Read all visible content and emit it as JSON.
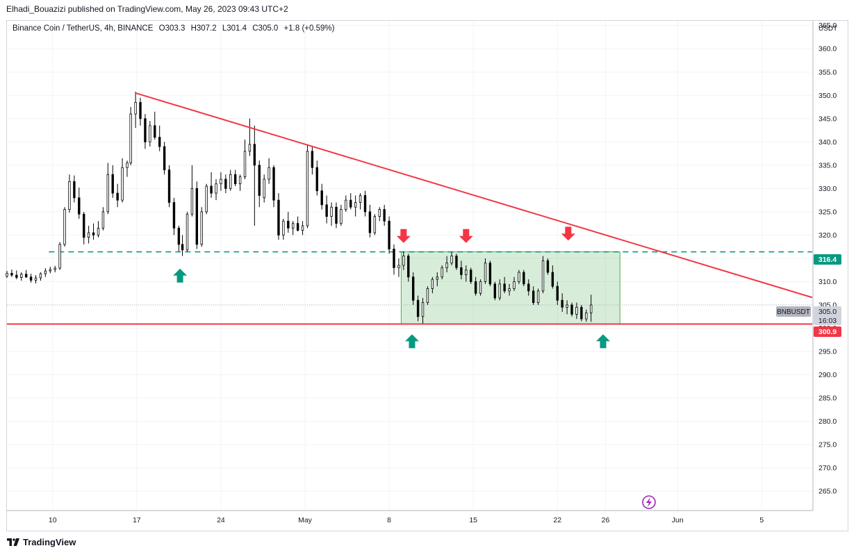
{
  "header": {
    "publisher_line": "Elhadi_Bouazizi published on TradingView.com, May 26, 2023 09:43 UTC+2"
  },
  "legend": {
    "symbol": "Binance Coin / TetherUS, 4h, BINANCE",
    "open": "O303.3",
    "high": "H307.2",
    "low": "L301.4",
    "close": "C305.0",
    "change": "+1.8 (+0.59%)"
  },
  "footer": {
    "brand": "TradingView"
  },
  "chart_data": {
    "type": "candlestick",
    "symbol_tag": "BNBUSDT",
    "currency": "USDT",
    "y_ticks": [
      365,
      360,
      355,
      350,
      345,
      340,
      335,
      330,
      325,
      320,
      315,
      310,
      305,
      300,
      295,
      290,
      285,
      280,
      275,
      270,
      265
    ],
    "y_tick_labels": [
      "365.0",
      "360.0",
      "355.0",
      "350.0",
      "345.0",
      "340.0",
      "335.0",
      "330.0",
      "325.0",
      "320.0",
      "315.0",
      "310.0",
      "305.0",
      "300.0",
      "295.0",
      "290.0",
      "285.0",
      "280.0",
      "275.0",
      "270.0",
      "265.0"
    ],
    "ylim": [
      261,
      366
    ],
    "x_ticks": [
      "10",
      "17",
      "24",
      "May",
      "8",
      "15",
      "22",
      "26",
      "Jun",
      "5"
    ],
    "x_tick_days": [
      10,
      17,
      24,
      31,
      38,
      45,
      52,
      56,
      62,
      69
    ],
    "xlim_days": [
      6.2,
      73.2
    ],
    "price_labels": {
      "resistance": "316.4",
      "current": "305.0",
      "countdown": "16:03",
      "support": "300.9"
    },
    "levels": {
      "resistance": 316.4,
      "support": 300.9,
      "last": 305.0
    },
    "trendline": {
      "from": [
        16.9,
        350.5
      ],
      "to": [
        73.2,
        306.6
      ]
    },
    "range_box": {
      "x_from": 39.0,
      "x_to": 57.2,
      "y_from": 300.9,
      "y_to": 316.4
    },
    "arrows": [
      {
        "dir": "up",
        "x": 20.6,
        "y": 311.3
      },
      {
        "dir": "down",
        "x": 39.2,
        "y": 319.8
      },
      {
        "dir": "down",
        "x": 44.4,
        "y": 319.8
      },
      {
        "dir": "down",
        "x": 52.9,
        "y": 320.3
      },
      {
        "dir": "up",
        "x": 39.9,
        "y": 297.2
      },
      {
        "dir": "up",
        "x": 55.8,
        "y": 297.2
      }
    ],
    "candles": [
      [
        6.2,
        311.2,
        312.3,
        310.8,
        311.8
      ],
      [
        6.6,
        311.8,
        312.6,
        311.0,
        311.4
      ],
      [
        7.0,
        311.4,
        312.4,
        310.5,
        310.9
      ],
      [
        7.4,
        310.9,
        312.0,
        310.2,
        311.6
      ],
      [
        7.8,
        311.6,
        312.5,
        310.8,
        311.0
      ],
      [
        8.2,
        311.0,
        311.7,
        309.8,
        310.3
      ],
      [
        8.6,
        310.3,
        311.4,
        309.6,
        310.8
      ],
      [
        9.0,
        310.8,
        312.0,
        310.2,
        311.7
      ],
      [
        9.4,
        311.7,
        312.9,
        311.0,
        312.3
      ],
      [
        9.8,
        312.3,
        313.2,
        311.8,
        312.6
      ],
      [
        10.2,
        312.6,
        313.4,
        312.0,
        312.9
      ],
      [
        10.6,
        312.9,
        318.5,
        312.5,
        318.0
      ],
      [
        11.0,
        318.0,
        326.0,
        317.5,
        325.5
      ],
      [
        11.4,
        325.5,
        333.0,
        324.8,
        331.5
      ],
      [
        11.8,
        331.5,
        332.8,
        327.0,
        328.0
      ],
      [
        12.2,
        328.0,
        330.2,
        323.5,
        324.5
      ],
      [
        12.6,
        324.5,
        325.0,
        318.0,
        319.5
      ],
      [
        13.0,
        319.5,
        322.0,
        318.2,
        320.5
      ],
      [
        13.4,
        320.5,
        322.5,
        319.0,
        320.0
      ],
      [
        13.8,
        320.0,
        323.0,
        319.5,
        321.5
      ],
      [
        14.2,
        321.5,
        326.0,
        321.0,
        325.0
      ],
      [
        14.6,
        325.0,
        335.5,
        324.5,
        333.0
      ],
      [
        15.0,
        333.0,
        335.0,
        328.0,
        329.0
      ],
      [
        15.4,
        329.0,
        331.0,
        326.0,
        327.5
      ],
      [
        15.8,
        327.5,
        336.5,
        327.0,
        334.5
      ],
      [
        16.2,
        334.5,
        336.0,
        332.5,
        335.5
      ],
      [
        16.5,
        335.5,
        347.5,
        335.0,
        346.0
      ],
      [
        16.9,
        346.0,
        350.8,
        343.0,
        348.5
      ],
      [
        17.3,
        348.5,
        349.5,
        343.5,
        345.0
      ],
      [
        17.7,
        345.0,
        346.0,
        338.5,
        340.0
      ],
      [
        18.1,
        340.0,
        344.5,
        339.0,
        343.5
      ],
      [
        18.5,
        343.5,
        346.5,
        340.5,
        341.0
      ],
      [
        18.9,
        341.0,
        343.5,
        338.0,
        339.0
      ],
      [
        19.3,
        339.0,
        340.0,
        333.0,
        334.0
      ],
      [
        19.7,
        334.0,
        335.0,
        326.0,
        327.0
      ],
      [
        20.1,
        327.0,
        328.0,
        320.0,
        321.5
      ],
      [
        20.5,
        321.5,
        322.0,
        316.5,
        318.0
      ],
      [
        20.8,
        318.0,
        320.0,
        315.5,
        316.8
      ],
      [
        21.2,
        316.8,
        325.0,
        316.5,
        324.5
      ],
      [
        21.6,
        324.5,
        335.0,
        324.0,
        330.0
      ],
      [
        22.0,
        330.0,
        331.5,
        317.0,
        318.0
      ],
      [
        22.4,
        318.0,
        326.0,
        317.5,
        325.0
      ],
      [
        22.8,
        325.0,
        331.0,
        324.5,
        330.5
      ],
      [
        23.2,
        330.5,
        333.5,
        328.0,
        329.0
      ],
      [
        23.6,
        329.0,
        332.0,
        327.5,
        331.0
      ],
      [
        24.0,
        331.0,
        333.5,
        329.5,
        332.0
      ],
      [
        24.4,
        332.0,
        333.0,
        329.0,
        330.0
      ],
      [
        24.8,
        330.0,
        334.0,
        329.5,
        333.0
      ],
      [
        25.2,
        333.0,
        334.0,
        330.5,
        331.0
      ],
      [
        25.6,
        331.0,
        333.0,
        329.5,
        332.5
      ],
      [
        26.0,
        332.5,
        340.5,
        332.0,
        338.0
      ],
      [
        26.4,
        338.0,
        345.0,
        337.0,
        339.5
      ],
      [
        26.8,
        339.5,
        343.5,
        322.0,
        335.0
      ],
      [
        27.2,
        335.0,
        336.0,
        326.0,
        328.5
      ],
      [
        27.6,
        328.0,
        333.0,
        327.0,
        332.0
      ],
      [
        28.0,
        332.0,
        336.5,
        331.0,
        334.5
      ],
      [
        28.4,
        334.5,
        335.0,
        326.0,
        327.5
      ],
      [
        28.8,
        327.5,
        329.0,
        319.0,
        320.0
      ],
      [
        29.2,
        320.0,
        323.5,
        319.0,
        323.0
      ],
      [
        29.6,
        323.0,
        325.0,
        320.5,
        321.5
      ],
      [
        30.0,
        321.5,
        323.0,
        320.0,
        322.5
      ],
      [
        30.4,
        322.5,
        324.0,
        320.8,
        321.0
      ],
      [
        30.8,
        321.0,
        323.0,
        320.0,
        322.0
      ],
      [
        31.2,
        322.0,
        339.5,
        321.5,
        338.0
      ],
      [
        31.6,
        338.0,
        339.0,
        333.0,
        334.5
      ],
      [
        32.0,
        334.5,
        336.0,
        328.5,
        329.5
      ],
      [
        32.4,
        329.5,
        331.0,
        325.5,
        326.5
      ],
      [
        32.8,
        326.5,
        328.5,
        322.5,
        324.0
      ],
      [
        33.2,
        324.0,
        327.0,
        322.0,
        326.0
      ],
      [
        33.6,
        326.0,
        327.0,
        321.5,
        322.5
      ],
      [
        34.0,
        322.5,
        326.5,
        322.0,
        325.5
      ],
      [
        34.4,
        325.5,
        328.5,
        325.0,
        327.5
      ],
      [
        34.8,
        327.5,
        329.0,
        325.5,
        326.0
      ],
      [
        35.2,
        326.0,
        328.5,
        324.0,
        327.0
      ],
      [
        35.6,
        327.0,
        329.0,
        325.5,
        328.5
      ],
      [
        36.0,
        328.5,
        329.5,
        324.0,
        325.0
      ],
      [
        36.4,
        325.0,
        326.5,
        319.5,
        320.5
      ],
      [
        36.8,
        320.5,
        324.5,
        320.0,
        324.0
      ],
      [
        37.2,
        324.0,
        326.0,
        323.0,
        325.5
      ],
      [
        37.6,
        325.5,
        326.5,
        322.0,
        323.0
      ],
      [
        38.0,
        323.0,
        324.0,
        316.0,
        317.0
      ],
      [
        38.4,
        317.0,
        318.0,
        311.5,
        313.0
      ],
      [
        38.8,
        313.0,
        315.0,
        311.0,
        313.5
      ],
      [
        39.2,
        313.5,
        316.5,
        312.5,
        315.5
      ],
      [
        39.6,
        315.5,
        316.0,
        310.0,
        311.0
      ],
      [
        40.0,
        311.0,
        312.0,
        305.0,
        306.0
      ],
      [
        40.4,
        306.0,
        307.0,
        301.5,
        302.5
      ],
      [
        40.8,
        302.5,
        306.5,
        301.0,
        305.5
      ],
      [
        41.2,
        305.5,
        309.0,
        305.0,
        308.5
      ],
      [
        41.6,
        308.5,
        311.0,
        307.5,
        310.5
      ],
      [
        42.0,
        310.5,
        312.0,
        309.0,
        311.0
      ],
      [
        42.4,
        311.0,
        313.5,
        310.5,
        313.0
      ],
      [
        42.8,
        313.0,
        315.5,
        312.0,
        314.0
      ],
      [
        43.2,
        314.0,
        316.4,
        313.5,
        315.5
      ],
      [
        43.6,
        315.5,
        316.0,
        312.5,
        313.0
      ],
      [
        44.0,
        313.0,
        314.5,
        310.5,
        311.5
      ],
      [
        44.4,
        311.5,
        313.5,
        310.0,
        312.5
      ],
      [
        44.8,
        312.5,
        313.0,
        309.5,
        310.0
      ],
      [
        45.2,
        310.0,
        311.0,
        307.0,
        307.5
      ],
      [
        45.6,
        307.5,
        310.5,
        307.0,
        310.0
      ],
      [
        46.0,
        310.0,
        315.0,
        309.5,
        314.0
      ],
      [
        46.4,
        314.0,
        314.5,
        309.0,
        309.5
      ],
      [
        46.8,
        309.5,
        310.0,
        306.0,
        306.5
      ],
      [
        47.2,
        306.5,
        310.5,
        306.0,
        309.5
      ],
      [
        47.6,
        309.5,
        311.0,
        307.5,
        308.0
      ],
      [
        48.0,
        308.0,
        309.5,
        307.0,
        308.5
      ],
      [
        48.4,
        308.5,
        311.0,
        308.0,
        310.0
      ],
      [
        48.8,
        310.0,
        312.5,
        309.5,
        312.0
      ],
      [
        49.2,
        312.0,
        312.5,
        309.0,
        309.5
      ],
      [
        49.6,
        309.5,
        310.5,
        307.0,
        308.0
      ],
      [
        50.0,
        308.0,
        309.0,
        305.0,
        305.5
      ],
      [
        50.4,
        305.5,
        308.5,
        305.0,
        308.0
      ],
      [
        50.8,
        308.0,
        315.5,
        307.5,
        314.5
      ],
      [
        51.2,
        314.5,
        315.0,
        311.5,
        312.0
      ],
      [
        51.6,
        312.0,
        313.5,
        308.5,
        309.0
      ],
      [
        52.0,
        309.0,
        310.0,
        305.0,
        306.0
      ],
      [
        52.4,
        306.0,
        307.5,
        303.5,
        304.5
      ],
      [
        52.8,
        304.5,
        306.0,
        303.0,
        305.0
      ],
      [
        53.2,
        305.0,
        305.5,
        302.5,
        303.0
      ],
      [
        53.6,
        303.0,
        305.5,
        302.0,
        304.5
      ],
      [
        54.0,
        304.5,
        305.0,
        301.5,
        302.0
      ],
      [
        54.4,
        302.0,
        304.0,
        301.4,
        303.3
      ],
      [
        54.8,
        303.3,
        307.2,
        301.4,
        305.0
      ]
    ]
  }
}
